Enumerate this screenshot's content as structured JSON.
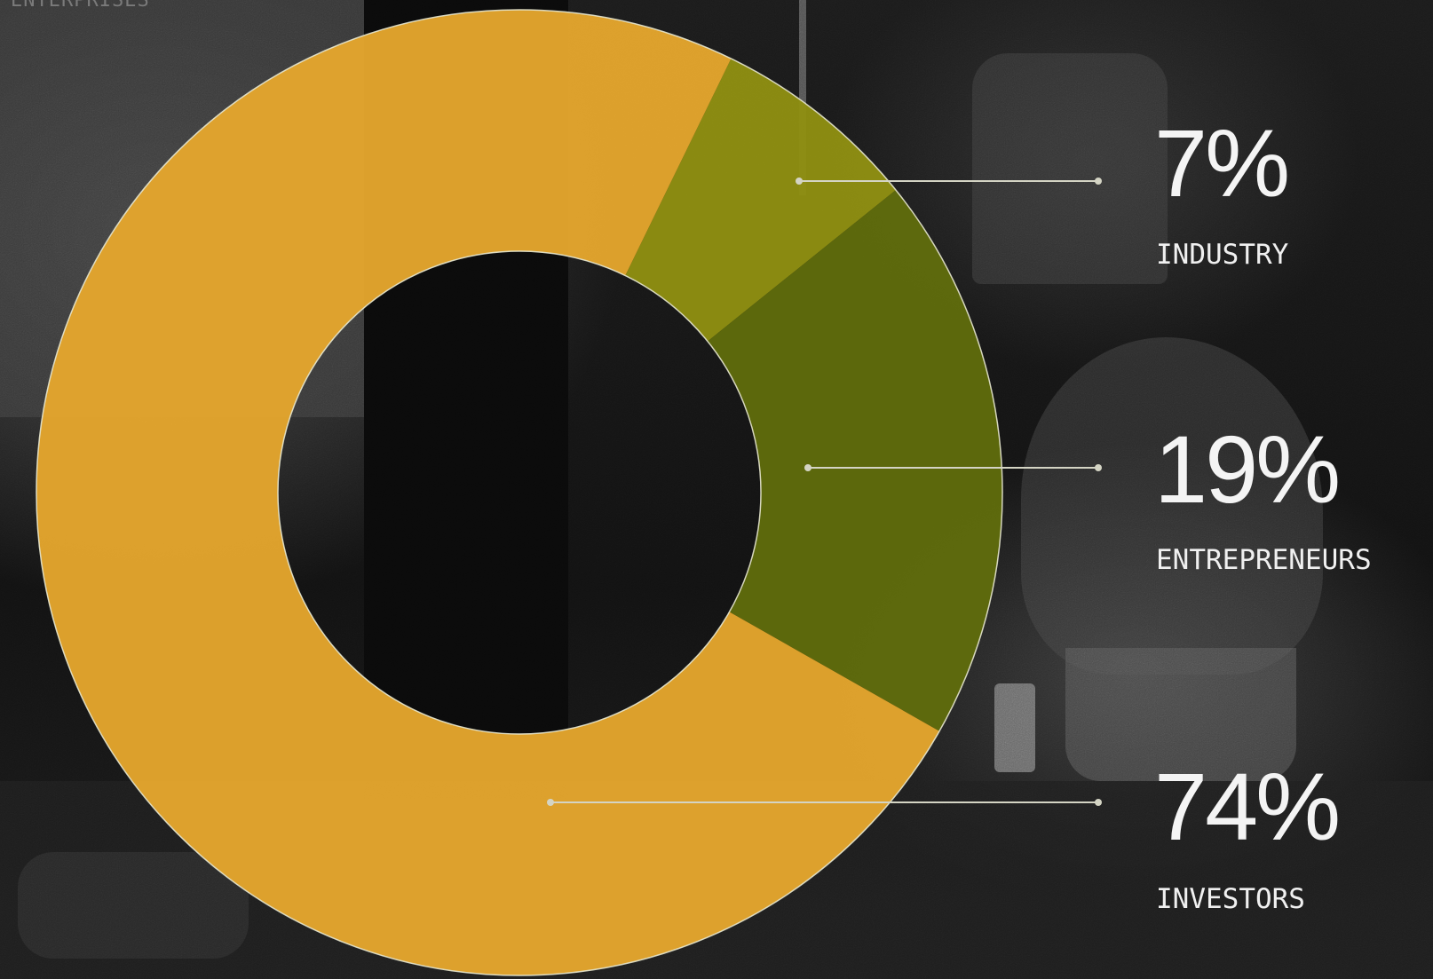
{
  "header": {
    "corner_label": "ENTERPRISES"
  },
  "chart_data": {
    "type": "pie",
    "variant": "donut",
    "title": "",
    "legend": "right",
    "slices": [
      {
        "label": "INDUSTRY",
        "value": 7,
        "display": "7%",
        "color": "#8e8e12"
      },
      {
        "label": "ENTREPRENEURS",
        "value": 19,
        "display": "19%",
        "color": "#5f6b0c"
      },
      {
        "label": "INVESTORS",
        "value": 74,
        "display": "74%",
        "color": "#e3a52d"
      }
    ]
  },
  "colors": {
    "background": "#0c0c0c",
    "ring_outline": "#e8e8d0",
    "leader_line": "#d4d4c4",
    "label_text": "#f4f4f4"
  }
}
